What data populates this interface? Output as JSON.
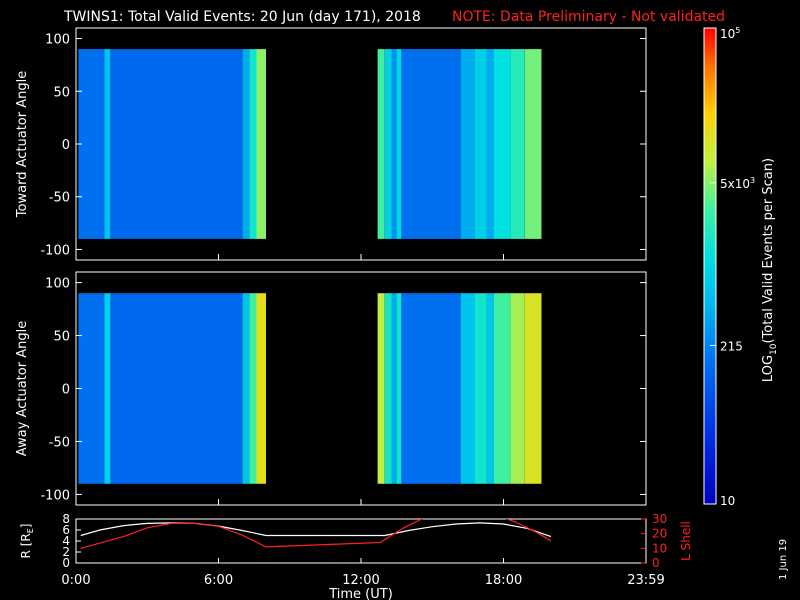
{
  "title": {
    "main": "TWINS1: Total Valid Events: 20 Jun (day 171), 2018",
    "note": "NOTE: Data Preliminary - Not validated"
  },
  "colorbar": {
    "label": "LOG",
    "label_sub": "10",
    "label_rest": "(Total Valid Events per Scan)",
    "ticks": [
      {
        "base": "10",
        "exp": "5",
        "value": 100000
      },
      {
        "base": "5x10",
        "exp": "3",
        "value": 5000
      },
      {
        "base": "215",
        "exp": "",
        "value": 215
      },
      {
        "base": "10",
        "exp": "",
        "value": 10
      }
    ],
    "range": [
      10,
      100000
    ],
    "scale": "log"
  },
  "date_stamp": "1 Jun 19",
  "colors": {
    "note": "#ff2020",
    "r_line": "#ffffff",
    "lshell_line": "#ff2020"
  },
  "chart_data": [
    {
      "type": "heatmap",
      "ylabel": "Toward Actuator Angle",
      "ylim": [
        -110,
        110
      ],
      "yticks": [
        "100",
        "50",
        "0",
        "-50",
        "-100"
      ],
      "xlim": [
        0,
        24
      ],
      "data_extent": {
        "angle": [
          -90,
          90
        ]
      },
      "data_intervals_hours": [
        [
          0.1,
          8.0
        ],
        [
          12.7,
          19.6
        ]
      ],
      "columns": [
        {
          "t0": 0.1,
          "t1": 1.2,
          "level": 0.3
        },
        {
          "t0": 1.2,
          "t1": 1.45,
          "level": 0.45
        },
        {
          "t0": 1.45,
          "t1": 7.0,
          "level": 0.28
        },
        {
          "t0": 7.0,
          "t1": 7.3,
          "level": 0.4
        },
        {
          "t0": 7.3,
          "t1": 7.6,
          "level": 0.55
        },
        {
          "t0": 7.6,
          "t1": 8.0,
          "level": 0.68
        },
        {
          "t0": 12.7,
          "t1": 13.0,
          "level": 0.62
        },
        {
          "t0": 13.0,
          "t1": 13.3,
          "level": 0.48
        },
        {
          "t0": 13.3,
          "t1": 13.5,
          "level": 0.36
        },
        {
          "t0": 13.5,
          "t1": 13.7,
          "level": 0.5
        },
        {
          "t0": 13.7,
          "t1": 16.2,
          "level": 0.3
        },
        {
          "t0": 16.2,
          "t1": 16.8,
          "level": 0.4
        },
        {
          "t0": 16.8,
          "t1": 17.3,
          "level": 0.48
        },
        {
          "t0": 17.3,
          "t1": 17.6,
          "level": 0.4
        },
        {
          "t0": 17.6,
          "t1": 18.3,
          "level": 0.52
        },
        {
          "t0": 18.3,
          "t1": 18.9,
          "level": 0.58
        },
        {
          "t0": 18.9,
          "t1": 19.6,
          "level": 0.66
        }
      ]
    },
    {
      "type": "heatmap",
      "ylabel": "Away Actuator Angle",
      "ylim": [
        -110,
        110
      ],
      "yticks": [
        "100",
        "50",
        "0",
        "-50",
        "-100"
      ],
      "xlim": [
        0,
        24
      ],
      "data_extent": {
        "angle": [
          -90,
          90
        ]
      },
      "data_intervals_hours": [
        [
          0.1,
          8.0
        ],
        [
          12.7,
          19.6
        ]
      ],
      "columns": [
        {
          "t0": 0.1,
          "t1": 1.2,
          "level": 0.3
        },
        {
          "t0": 1.2,
          "t1": 1.45,
          "level": 0.48
        },
        {
          "t0": 1.45,
          "t1": 7.0,
          "level": 0.28
        },
        {
          "t0": 7.0,
          "t1": 7.3,
          "level": 0.45
        },
        {
          "t0": 7.3,
          "t1": 7.6,
          "level": 0.62
        },
        {
          "t0": 7.6,
          "t1": 8.0,
          "level": 0.78
        },
        {
          "t0": 12.7,
          "t1": 13.0,
          "level": 0.72
        },
        {
          "t0": 13.0,
          "t1": 13.3,
          "level": 0.55
        },
        {
          "t0": 13.3,
          "t1": 13.5,
          "level": 0.4
        },
        {
          "t0": 13.5,
          "t1": 13.7,
          "level": 0.55
        },
        {
          "t0": 13.7,
          "t1": 16.2,
          "level": 0.3
        },
        {
          "t0": 16.2,
          "t1": 16.8,
          "level": 0.45
        },
        {
          "t0": 16.8,
          "t1": 17.3,
          "level": 0.55
        },
        {
          "t0": 17.3,
          "t1": 17.6,
          "level": 0.45
        },
        {
          "t0": 17.6,
          "t1": 18.3,
          "level": 0.62
        },
        {
          "t0": 18.3,
          "t1": 18.9,
          "level": 0.7
        },
        {
          "t0": 18.9,
          "t1": 19.6,
          "level": 0.76
        }
      ]
    },
    {
      "type": "line",
      "xlabel": "Time (UT)",
      "xticks": [
        "0:00",
        "6:00",
        "12:00",
        "18:00",
        "23:59"
      ],
      "xlim": [
        0,
        24
      ],
      "ylabel_left": "R [RE]",
      "ylabel_left_base": "R [R",
      "ylabel_left_sub": "E",
      "ylabel_left_end": "]",
      "yticks_left": [
        "8",
        "6",
        "4",
        "2",
        "0"
      ],
      "ylim_left": [
        0,
        8
      ],
      "ylabel_right": "L Shell",
      "yticks_right": [
        "30",
        "20",
        "10",
        "0"
      ],
      "ylim_right": [
        0,
        30
      ],
      "series": [
        {
          "axis": "left",
          "x": [
            0.2,
            1.0,
            2.0,
            3.0,
            4.0,
            5.0,
            6.0,
            7.0,
            8.0,
            9.0,
            10.0,
            11.0,
            12.0,
            13.0,
            14.0,
            15.0,
            16.0,
            17.0,
            18.0,
            19.0,
            20.0
          ],
          "y": [
            5.0,
            6.0,
            6.8,
            7.2,
            7.3,
            7.2,
            6.7,
            5.9,
            5.0,
            5.0,
            5.0,
            5.0,
            5.0,
            5.0,
            5.9,
            6.6,
            7.1,
            7.3,
            7.1,
            6.3,
            4.8
          ]
        },
        {
          "axis": "right",
          "x": [
            0.2,
            2.0,
            3.0,
            4.0,
            5.0,
            6.0,
            7.0,
            8.0,
            12.8,
            13.8,
            14.8,
            17.8,
            18.5,
            19.5,
            20.0
          ],
          "y": [
            10,
            18,
            24,
            27,
            27,
            25,
            19,
            11,
            14,
            24,
            32,
            32,
            28,
            20,
            15
          ]
        }
      ]
    }
  ]
}
